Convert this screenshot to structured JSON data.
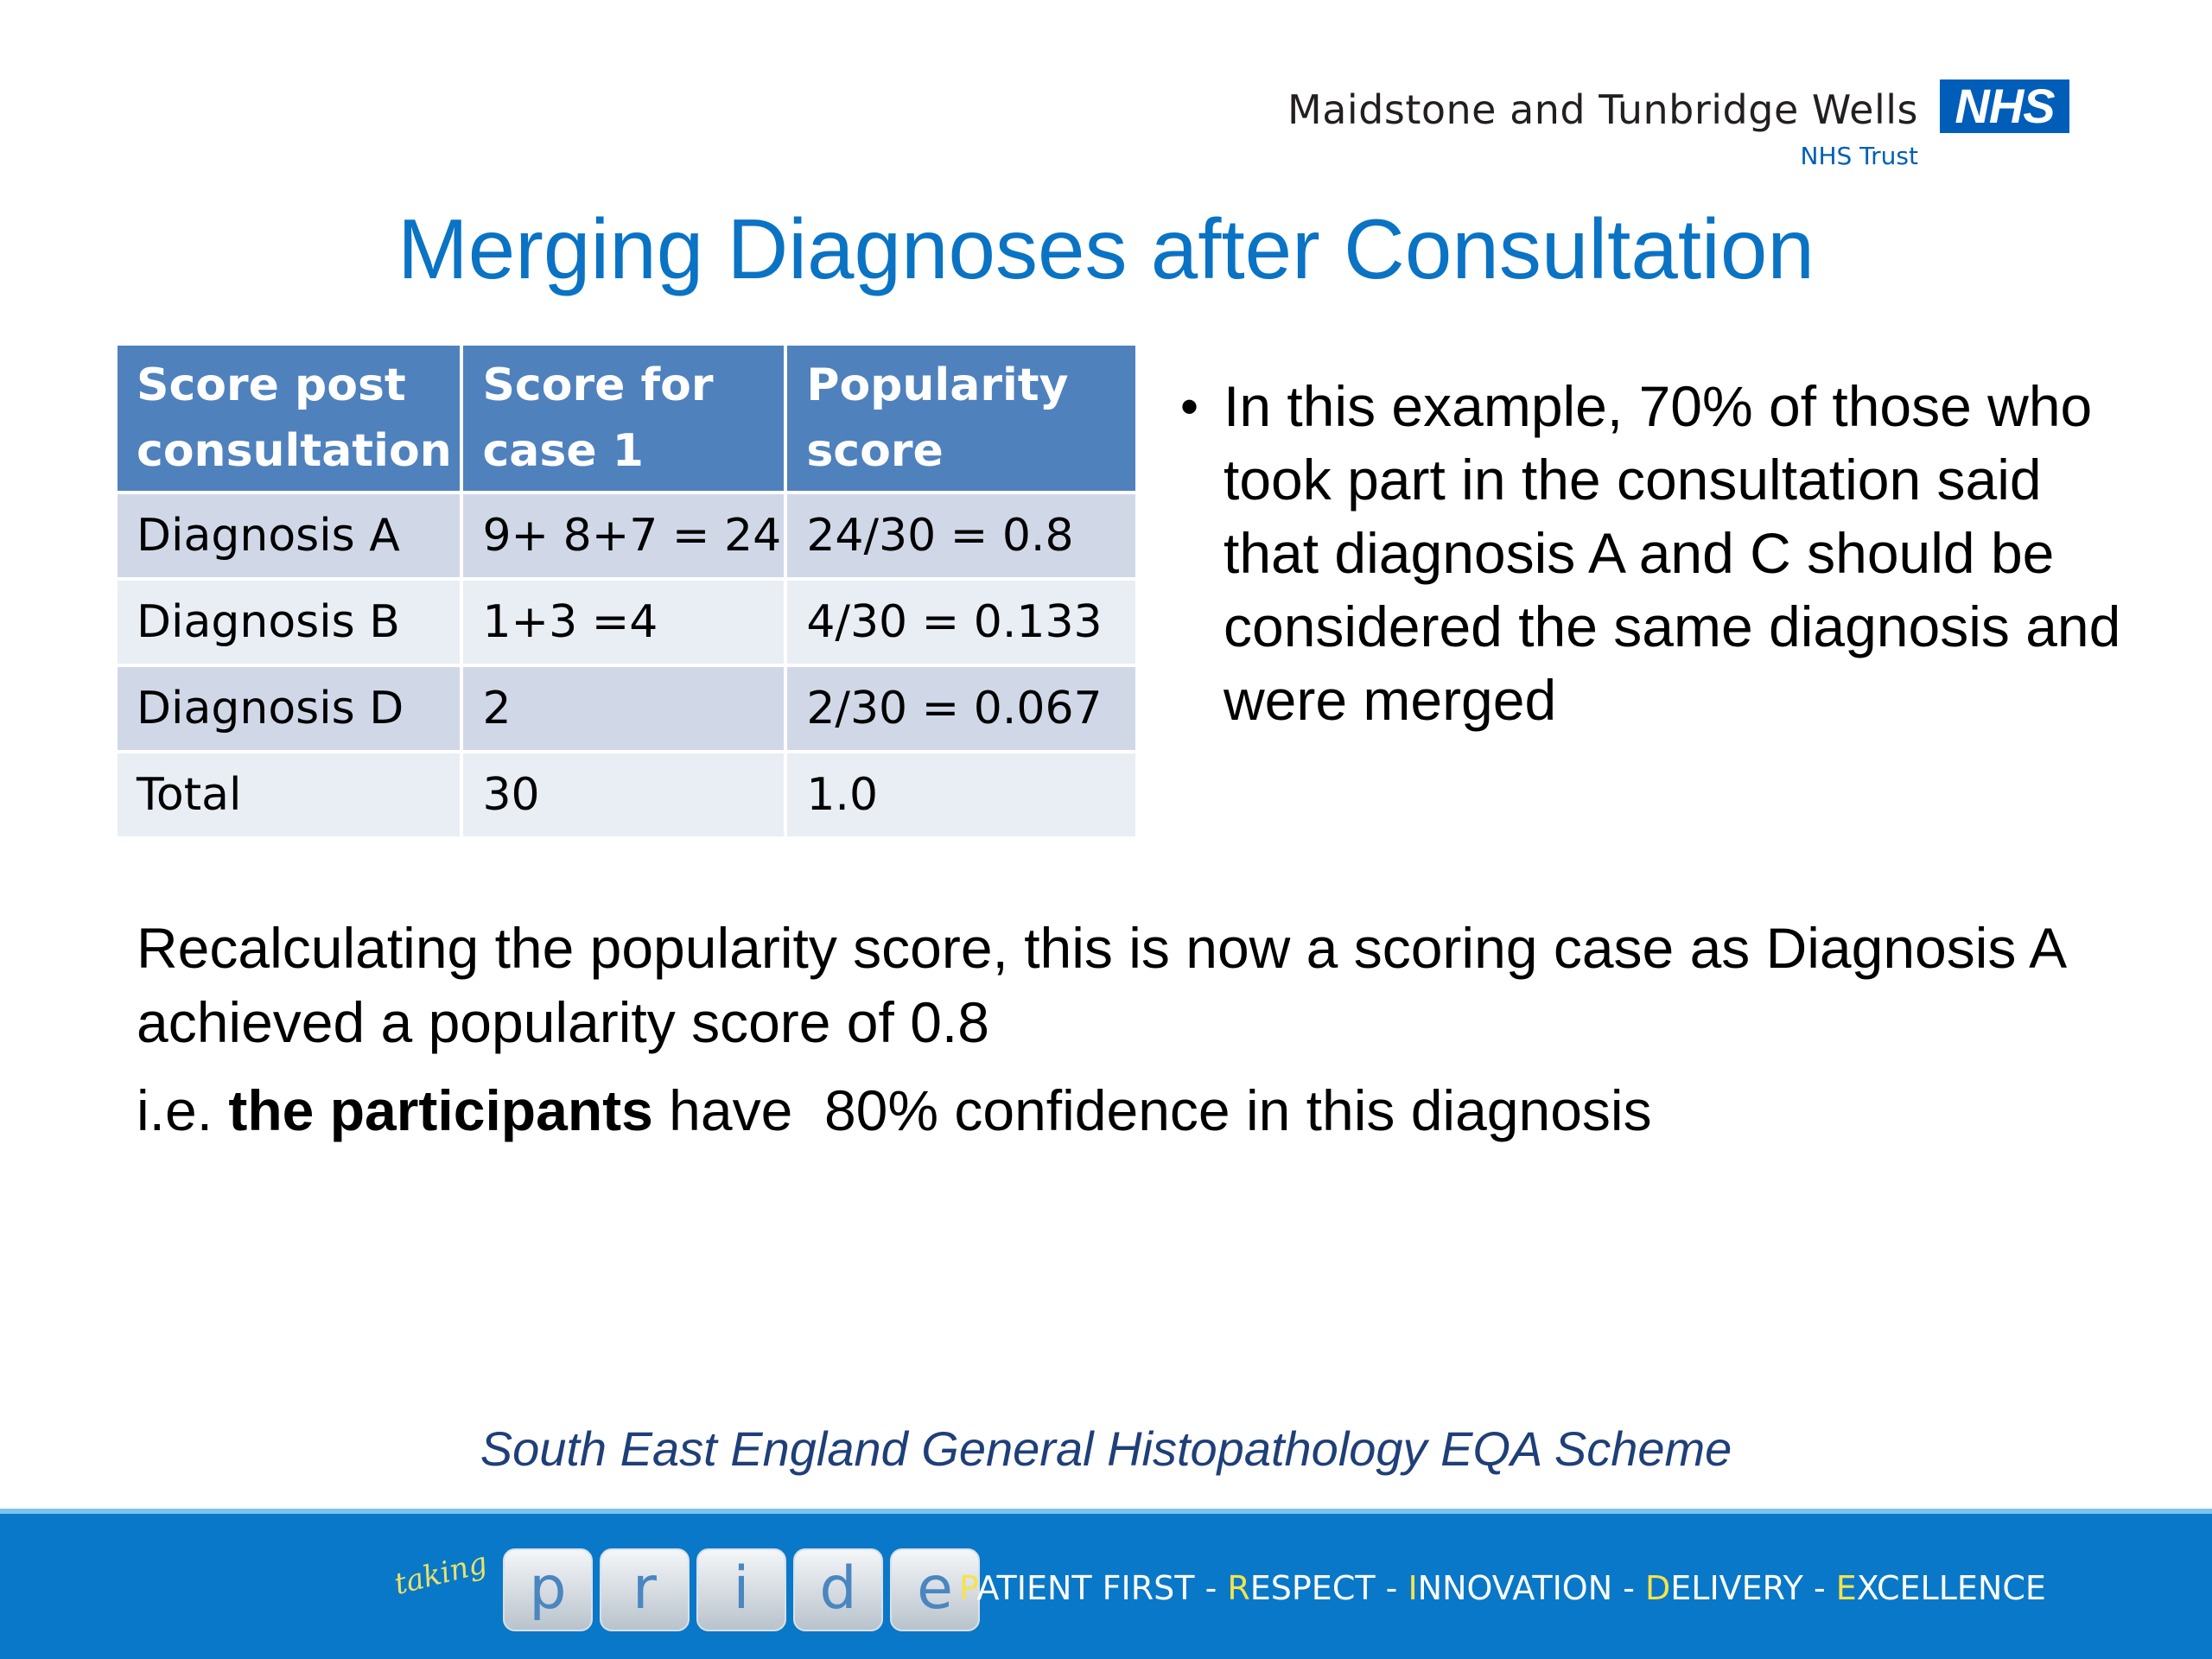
{
  "header": {
    "trust_name": "Maidstone and Tunbridge Wells",
    "nhs_logo_text": "NHS",
    "trust_subtitle": "NHS Trust"
  },
  "title": "Merging Diagnoses after Consultation",
  "table": {
    "headers": [
      "Score post consultation",
      "Score for case 1",
      "Popularity score"
    ],
    "rows": [
      [
        "Diagnosis A",
        "9+ 8+7 = 24",
        "24/30 = 0.8"
      ],
      [
        "Diagnosis B",
        "1+3 =4",
        "4/30 = 0.133"
      ],
      [
        "Diagnosis D",
        "2",
        "2/30 = 0.067"
      ],
      [
        "Total",
        "30",
        "1.0"
      ]
    ]
  },
  "bullet": {
    "symbol": "•",
    "text": "In this example, 70% of those who took part in the consultation said that diagnosis A and C should be considered the same diagnosis and were merged"
  },
  "paragraph_1": "Recalculating the popularity score, this is now a scoring case as Diagnosis A achieved a popularity score of 0.8",
  "paragraph_2": {
    "prefix": "i.e. ",
    "bold": "the participants",
    "suffix": " have  80% confidence in this diagnosis"
  },
  "scheme_caption": "South East England General Histopathology EQA Scheme",
  "footer": {
    "taking_text": "taking",
    "pride_letters": [
      "p",
      "r",
      "i",
      "d",
      "e"
    ],
    "values": [
      {
        "initial": "P",
        "rest": "ATIENT FIRST"
      },
      {
        "initial": "R",
        "rest": "ESPECT"
      },
      {
        "initial": "I",
        "rest": "NNOVATION"
      },
      {
        "initial": "D",
        "rest": "ELIVERY"
      },
      {
        "initial": "E",
        "rest": "XCELLENCE"
      }
    ],
    "separator": " - "
  },
  "colors": {
    "title": "#0a73c4",
    "table_header": "#4f81bd",
    "table_row_dark": "#d0d8e8",
    "table_row_light": "#e9edf4",
    "footer_band": "#0a78c8",
    "nhs_blue": "#005eb8",
    "value_initial": "#f4e34c"
  }
}
